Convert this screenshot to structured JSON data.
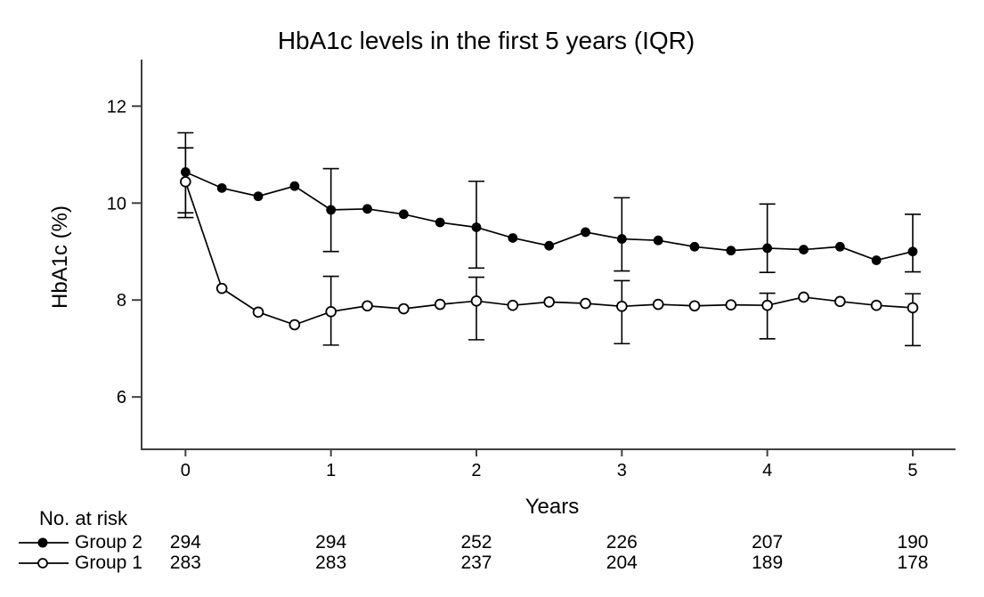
{
  "chart_data": {
    "type": "line",
    "title": "HbA1c levels in the first 5 years (IQR)",
    "xlabel": "Years",
    "ylabel": "HbA1c (%)",
    "xlim": [
      -0.302,
      5.294
    ],
    "ylim": [
      4.92,
      12.96
    ],
    "xticks": [
      0,
      1,
      2,
      3,
      4,
      5
    ],
    "yticks": [
      6,
      8,
      10,
      12
    ],
    "grid": false,
    "legend_position": "bottom-left",
    "x": [
      0,
      0.25,
      0.5,
      0.75,
      1,
      1.25,
      1.5,
      1.75,
      2,
      2.25,
      2.5,
      2.75,
      3,
      3.25,
      3.5,
      3.75,
      4,
      4.25,
      4.5,
      4.75,
      5
    ],
    "series": [
      {
        "name": "Group 2",
        "marker": "filled-circle",
        "color": "#000000",
        "values": [
          10.64,
          10.31,
          10.14,
          10.35,
          9.86,
          9.88,
          9.77,
          9.6,
          9.5,
          9.28,
          9.12,
          9.4,
          9.26,
          9.23,
          9.1,
          9.02,
          9.07,
          9.04,
          9.1,
          8.82,
          9.0
        ],
        "error_bars": {
          "x": [
            0,
            1,
            2,
            3,
            4,
            5
          ],
          "low": [
            9.8,
            9.0,
            8.66,
            8.6,
            8.57,
            8.58
          ],
          "high": [
            11.45,
            10.71,
            10.45,
            10.11,
            9.98,
            9.77
          ]
        }
      },
      {
        "name": "Group 1",
        "marker": "open-circle",
        "color": "#000000",
        "values": [
          10.44,
          8.24,
          7.75,
          7.49,
          7.76,
          7.88,
          7.82,
          7.91,
          7.98,
          7.89,
          7.96,
          7.93,
          7.87,
          7.91,
          7.88,
          7.9,
          7.89,
          8.06,
          7.97,
          7.89,
          7.84
        ],
        "error_bars": {
          "x": [
            0,
            1,
            2,
            3,
            4,
            5
          ],
          "low": [
            9.7,
            7.07,
            7.18,
            7.1,
            7.2,
            7.06
          ],
          "high": [
            11.14,
            8.49,
            8.47,
            8.4,
            8.14,
            8.13
          ]
        }
      }
    ],
    "colors": {
      "line": "#000000",
      "axis": "#404040",
      "background": "#ffffff"
    }
  },
  "risk_table": {
    "heading": "No. at risk",
    "columns": [
      0,
      1,
      2,
      3,
      4,
      5
    ],
    "rows": [
      {
        "label": "Group 2",
        "marker": "filled-circle",
        "counts": [
          "294",
          "294",
          "252",
          "226",
          "207",
          "190"
        ]
      },
      {
        "label": "Group 1",
        "marker": "open-circle",
        "counts": [
          "283",
          "283",
          "237",
          "204",
          "189",
          "178"
        ]
      }
    ]
  }
}
